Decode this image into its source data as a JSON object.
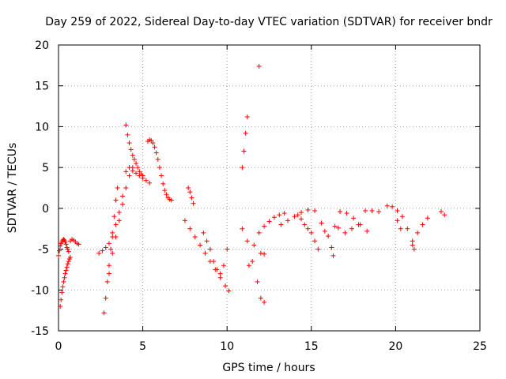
{
  "chart_data": {
    "type": "scatter",
    "title": "Day 259 of 2022, Sidereal Day-to-day VTEC variation (SDTVAR) for receiver bndr",
    "xlabel": "GPS time / hours",
    "ylabel": "SDTVAR / TECUs",
    "xlim": [
      0,
      25
    ],
    "ylim": [
      -15,
      20
    ],
    "xticks": [
      "0",
      "5",
      "10",
      "15",
      "20",
      "25"
    ],
    "yticks": [
      "20",
      "15",
      "10",
      "5",
      "0",
      "-5",
      "-10",
      "-15"
    ],
    "grid": true,
    "marker": "plus",
    "color": "#ff0000",
    "series": [
      {
        "name": "s1",
        "x": [
          0.0,
          0.05,
          0.1,
          0.15,
          0.2,
          0.25,
          0.3,
          0.35,
          0.4,
          0.45,
          0.5,
          0.55,
          0.6
        ],
        "y": [
          -5.8,
          -5.2,
          -4.6,
          -4.3,
          -4.1,
          -3.9,
          -3.8,
          -3.9,
          -4.1,
          -4.4,
          -4.8,
          -5.0,
          -5.3
        ]
      },
      {
        "name": "s2",
        "x": [
          0.1,
          0.15,
          0.2,
          0.25,
          0.3,
          0.35,
          0.4,
          0.45,
          0.5,
          0.55,
          0.6,
          0.65,
          0.7
        ],
        "y": [
          -12.0,
          -11.2,
          -10.3,
          -9.6,
          -9.0,
          -8.5,
          -8.0,
          -7.6,
          -7.2,
          -6.8,
          -6.5,
          -6.2,
          -6.0
        ]
      },
      {
        "name": "s3",
        "x": [
          0.7,
          0.8,
          0.9,
          1.0,
          1.1,
          1.2
        ],
        "y": [
          -4.0,
          -3.8,
          -3.9,
          -4.1,
          -4.3,
          -4.4
        ]
      },
      {
        "name": "s4",
        "x": [
          2.4,
          2.6,
          2.8,
          3.0,
          3.2,
          3.4,
          3.6,
          3.8,
          4.0
        ],
        "y": [
          -5.5,
          -5.2,
          -4.8,
          -4.3,
          -3.5,
          -2.0,
          -0.5,
          1.5,
          4.5
        ]
      },
      {
        "name": "s5",
        "x": [
          2.7,
          2.8,
          2.9,
          3.0,
          3.1,
          3.2,
          3.3,
          3.4,
          3.5
        ],
        "y": [
          -12.8,
          -11.0,
          -9.0,
          -7.0,
          -5.0,
          -3.0,
          -1.0,
          1.0,
          2.5
        ]
      },
      {
        "name": "s6",
        "x": [
          3.0,
          3.2,
          3.4,
          3.6,
          3.8,
          4.0,
          4.2,
          4.4
        ],
        "y": [
          -8.0,
          -5.5,
          -3.5,
          -1.5,
          0.5,
          2.5,
          4.0,
          5.0
        ]
      },
      {
        "name": "s7",
        "x": [
          4.0,
          4.1,
          4.2,
          4.3,
          4.4,
          4.5,
          4.6,
          4.7,
          4.8,
          4.9,
          5.0
        ],
        "y": [
          10.2,
          9.0,
          8.0,
          7.2,
          6.5,
          6.0,
          5.5,
          5.0,
          4.5,
          4.2,
          4.0
        ]
      },
      {
        "name": "s8",
        "x": [
          4.2,
          4.4,
          4.6,
          4.8,
          5.0,
          5.2,
          5.4
        ],
        "y": [
          5.0,
          4.6,
          4.3,
          4.0,
          3.7,
          3.4,
          3.1
        ]
      },
      {
        "name": "s9",
        "x": [
          5.3,
          5.4,
          5.5,
          5.6,
          5.7,
          5.8,
          5.9,
          6.0,
          6.1,
          6.2,
          6.3,
          6.4,
          6.5,
          6.6,
          6.7
        ],
        "y": [
          8.2,
          8.4,
          8.3,
          8.0,
          7.5,
          6.8,
          6.0,
          5.0,
          4.0,
          3.0,
          2.2,
          1.7,
          1.3,
          1.1,
          1.0
        ]
      },
      {
        "name": "s10",
        "x": [
          7.7,
          7.8,
          7.9,
          8.0
        ],
        "y": [
          2.5,
          2.0,
          1.3,
          0.6
        ]
      },
      {
        "name": "s11",
        "x": [
          7.5,
          7.8,
          8.1,
          8.4,
          8.7,
          9.0,
          9.3,
          9.6,
          9.9,
          10.1
        ],
        "y": [
          -1.5,
          -2.5,
          -3.5,
          -4.5,
          -5.5,
          -6.5,
          -7.5,
          -8.5,
          -9.5,
          -10.1
        ]
      },
      {
        "name": "s12",
        "x": [
          8.6,
          8.8,
          9.0,
          9.2,
          9.4,
          9.6,
          9.8,
          10.0
        ],
        "y": [
          -3.0,
          -4.0,
          -5.0,
          -6.5,
          -7.5,
          -8.0,
          -7.0,
          -5.0
        ]
      },
      {
        "name": "s13",
        "x": [
          10.9,
          11.0,
          11.1,
          11.2
        ],
        "y": [
          5.0,
          7.0,
          9.2,
          11.2
        ]
      },
      {
        "name": "s14",
        "x": [
          10.9,
          11.2,
          11.5,
          11.8,
          12.0,
          12.2
        ],
        "y": [
          -2.5,
          -4.0,
          -6.5,
          -9.0,
          -11.0,
          -11.5
        ]
      },
      {
        "name": "s15",
        "x": [
          11.9
        ],
        "y": [
          17.4
        ]
      },
      {
        "name": "s16",
        "x": [
          11.3,
          11.6,
          11.9,
          12.2,
          12.5,
          12.8,
          13.1,
          13.4
        ],
        "y": [
          -7.0,
          -4.5,
          -3.0,
          -2.2,
          -1.6,
          -1.1,
          -0.8,
          -0.6
        ]
      },
      {
        "name": "s17",
        "x": [
          12.0,
          12.2
        ],
        "y": [
          -5.5,
          -5.6
        ]
      },
      {
        "name": "s18",
        "x": [
          13.2,
          13.6,
          14.0,
          14.4,
          14.8,
          15.2
        ],
        "y": [
          -2.0,
          -1.5,
          -1.0,
          -0.5,
          -0.2,
          -0.3
        ]
      },
      {
        "name": "s19",
        "x": [
          14.2,
          14.4,
          14.6,
          14.8
        ],
        "y": [
          -0.8,
          -1.3,
          -2.0,
          -2.5
        ]
      },
      {
        "name": "s20",
        "x": [
          15.0,
          15.2,
          15.4
        ],
        "y": [
          -3.0,
          -4.0,
          -5.0
        ]
      },
      {
        "name": "s21",
        "x": [
          15.6,
          15.8,
          16.0
        ],
        "y": [
          -1.8,
          -2.8,
          -3.4
        ]
      },
      {
        "name": "s22",
        "x": [
          16.2,
          16.3
        ],
        "y": [
          -4.8,
          -5.8
        ]
      },
      {
        "name": "s23",
        "x": [
          16.4,
          16.6
        ],
        "y": [
          -2.2,
          -2.4
        ]
      },
      {
        "name": "s24",
        "x": [
          16.7,
          17.1,
          17.5,
          17.9,
          18.3
        ],
        "y": [
          -0.4,
          -0.6,
          -1.2,
          -2.0,
          -2.8
        ]
      },
      {
        "name": "s25",
        "x": [
          17.0,
          17.4,
          17.8
        ],
        "y": [
          -3.0,
          -2.5,
          -2.0
        ]
      },
      {
        "name": "s26",
        "x": [
          18.2,
          18.6,
          19.0
        ],
        "y": [
          -0.3,
          -0.3,
          -0.4
        ]
      },
      {
        "name": "s27",
        "x": [
          19.5,
          19.8,
          20.1,
          20.4,
          20.7,
          21.0,
          21.1
        ],
        "y": [
          0.3,
          0.2,
          -0.3,
          -1.0,
          -2.5,
          -4.0,
          -5.0
        ]
      },
      {
        "name": "s28",
        "x": [
          20.1,
          20.3
        ],
        "y": [
          -1.5,
          -2.5
        ]
      },
      {
        "name": "s29",
        "x": [
          21.0,
          21.3,
          21.6,
          21.9
        ],
        "y": [
          -4.5,
          -3.0,
          -2.0,
          -1.2
        ]
      },
      {
        "name": "s30",
        "x": [
          22.7,
          22.9
        ],
        "y": [
          -0.4,
          -0.8
        ]
      }
    ]
  }
}
